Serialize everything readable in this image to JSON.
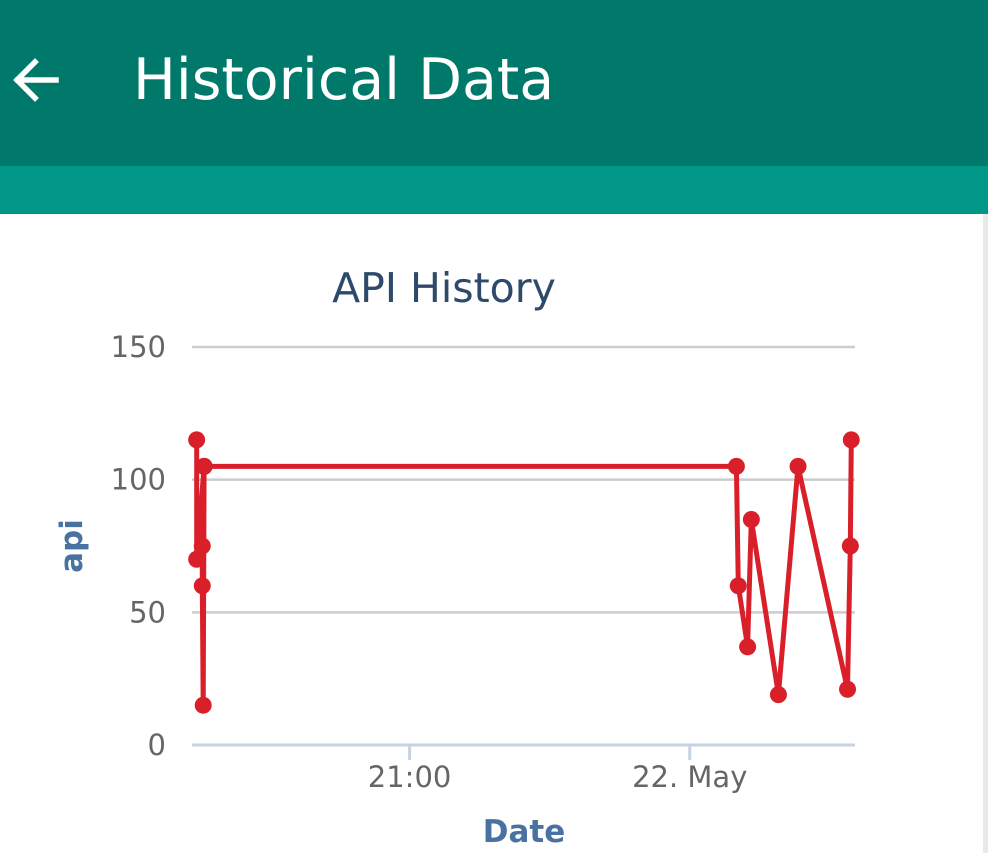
{
  "appbar": {
    "title": "Historical Data",
    "back_icon": "arrow-left-icon",
    "color": "#00796b"
  },
  "tabstrip": {
    "color": "#009688"
  },
  "chart_data": {
    "type": "line",
    "title": "API History",
    "xlabel": "Date",
    "ylabel": "api",
    "ylim": [
      0,
      150
    ],
    "yticks": [
      0,
      50,
      100,
      150
    ],
    "xticks": [
      {
        "label": "21:00",
        "t": 21.0
      },
      {
        "label": "22. May",
        "t": 24.0
      }
    ],
    "xlim": [
      18.67,
      25.77
    ],
    "x_unit": "hours from 00:00 on 21 May",
    "grid": true,
    "series_color": "#d9202a",
    "points": [
      {
        "x": 18.72,
        "y": 115
      },
      {
        "x": 18.72,
        "y": 70
      },
      {
        "x": 18.8,
        "y": 105
      },
      {
        "x": 18.78,
        "y": 75
      },
      {
        "x": 18.78,
        "y": 60
      },
      {
        "x": 18.79,
        "y": 15
      },
      {
        "x": 18.8,
        "y": 105
      },
      {
        "x": 24.5,
        "y": 105
      },
      {
        "x": 24.52,
        "y": 60
      },
      {
        "x": 24.62,
        "y": 37
      },
      {
        "x": 24.66,
        "y": 85
      },
      {
        "x": 24.95,
        "y": 19
      },
      {
        "x": 25.16,
        "y": 105
      },
      {
        "x": 25.69,
        "y": 21
      },
      {
        "x": 25.72,
        "y": 75
      },
      {
        "x": 25.73,
        "y": 115
      }
    ]
  }
}
